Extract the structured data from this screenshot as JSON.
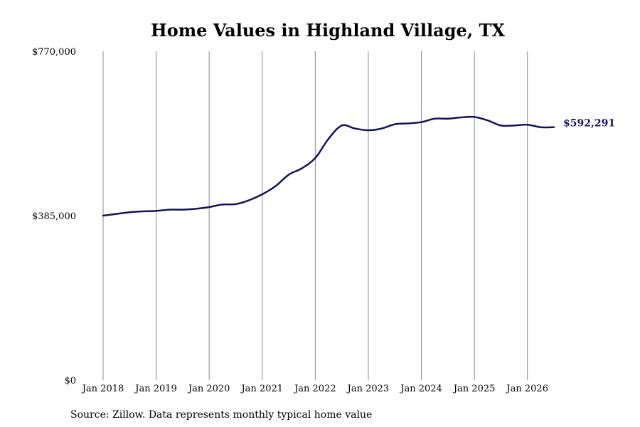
{
  "chart_data": {
    "type": "line",
    "title": "Home Values in Highland Village, TX",
    "xlabel": "",
    "ylabel": "",
    "ylim": [
      0,
      770000
    ],
    "y_ticks": [
      {
        "value": 0,
        "label": "$0"
      },
      {
        "value": 385000,
        "label": "$385,000"
      },
      {
        "value": 770000,
        "label": "$770,000"
      }
    ],
    "x_ticks": [
      {
        "value": "2018-01",
        "label": "Jan 2018"
      },
      {
        "value": "2019-01",
        "label": "Jan 2019"
      },
      {
        "value": "2020-01",
        "label": "Jan 2020"
      },
      {
        "value": "2021-01",
        "label": "Jan 2021"
      },
      {
        "value": "2022-01",
        "label": "Jan 2022"
      },
      {
        "value": "2023-01",
        "label": "Jan 2023"
      },
      {
        "value": "2024-01",
        "label": "Jan 2024"
      },
      {
        "value": "2025-01",
        "label": "Jan 2025"
      },
      {
        "value": "2026-01",
        "label": "Jan 2026"
      }
    ],
    "xlim": [
      "2018-01",
      "2026-07"
    ],
    "grid": "vertical",
    "legend": "none",
    "series": [
      {
        "color": "#14145a",
        "x": [
          "2018-01",
          "2018-04",
          "2018-07",
          "2018-10",
          "2019-01",
          "2019-04",
          "2019-07",
          "2019-10",
          "2020-01",
          "2020-04",
          "2020-07",
          "2020-10",
          "2021-01",
          "2021-04",
          "2021-07",
          "2021-10",
          "2022-01",
          "2022-04",
          "2022-07",
          "2022-10",
          "2023-01",
          "2023-04",
          "2023-07",
          "2023-10",
          "2024-01",
          "2024-04",
          "2024-07",
          "2024-10",
          "2025-01",
          "2025-04",
          "2025-07",
          "2025-10",
          "2026-01",
          "2026-04",
          "2026-07"
        ],
        "y": [
          385000,
          389000,
          393000,
          395000,
          396000,
          399000,
          399000,
          401000,
          405000,
          411000,
          412000,
          421000,
          435000,
          454000,
          481000,
          496000,
          520000,
          565000,
          596000,
          589000,
          585000,
          589000,
          599000,
          601000,
          604000,
          612000,
          612000,
          615000,
          616000,
          608000,
          596000,
          596000,
          598000,
          592000,
          592291
        ]
      }
    ],
    "end_label": "$592,291"
  },
  "source_note": "Source: Zillow. Data represents monthly typical home value"
}
